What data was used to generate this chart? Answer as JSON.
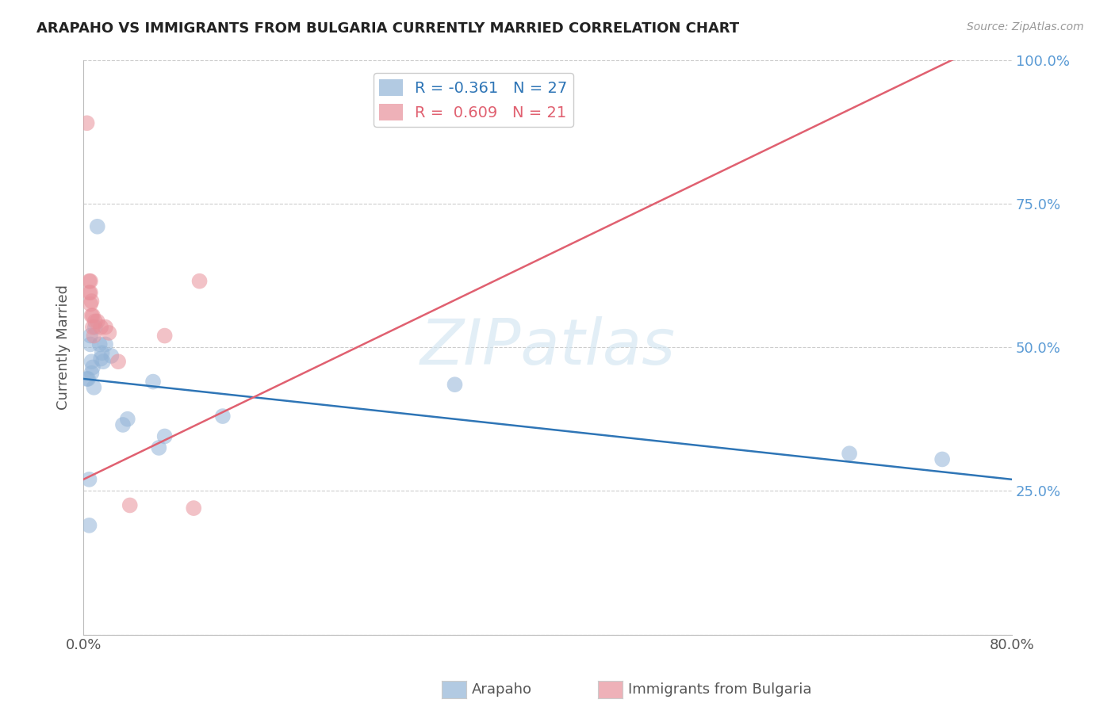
{
  "title": "ARAPAHO VS IMMIGRANTS FROM BULGARIA CURRENTLY MARRIED CORRELATION CHART",
  "source": "Source: ZipAtlas.com",
  "ylabel": "Currently Married",
  "xlim": [
    0.0,
    0.8
  ],
  "ylim": [
    0.0,
    1.0
  ],
  "blue_color": "#92b4d7",
  "pink_color": "#e8909a",
  "blue_line_color": "#2e75b6",
  "pink_line_color": "#e06070",
  "arapaho_points": [
    [
      0.003,
      0.445
    ],
    [
      0.004,
      0.445
    ],
    [
      0.005,
      0.27
    ],
    [
      0.005,
      0.19
    ],
    [
      0.006,
      0.505
    ],
    [
      0.006,
      0.52
    ],
    [
      0.007,
      0.475
    ],
    [
      0.007,
      0.455
    ],
    [
      0.008,
      0.465
    ],
    [
      0.009,
      0.43
    ],
    [
      0.01,
      0.535
    ],
    [
      0.012,
      0.71
    ],
    [
      0.014,
      0.505
    ],
    [
      0.015,
      0.48
    ],
    [
      0.016,
      0.49
    ],
    [
      0.017,
      0.475
    ],
    [
      0.019,
      0.505
    ],
    [
      0.024,
      0.485
    ],
    [
      0.034,
      0.365
    ],
    [
      0.038,
      0.375
    ],
    [
      0.06,
      0.44
    ],
    [
      0.065,
      0.325
    ],
    [
      0.07,
      0.345
    ],
    [
      0.12,
      0.38
    ],
    [
      0.32,
      0.435
    ],
    [
      0.66,
      0.315
    ],
    [
      0.74,
      0.305
    ]
  ],
  "bulgaria_points": [
    [
      0.003,
      0.89
    ],
    [
      0.005,
      0.615
    ],
    [
      0.005,
      0.595
    ],
    [
      0.006,
      0.615
    ],
    [
      0.006,
      0.595
    ],
    [
      0.006,
      0.575
    ],
    [
      0.007,
      0.58
    ],
    [
      0.007,
      0.555
    ],
    [
      0.008,
      0.555
    ],
    [
      0.008,
      0.535
    ],
    [
      0.009,
      0.52
    ],
    [
      0.01,
      0.545
    ],
    [
      0.012,
      0.545
    ],
    [
      0.015,
      0.535
    ],
    [
      0.019,
      0.535
    ],
    [
      0.022,
      0.525
    ],
    [
      0.03,
      0.475
    ],
    [
      0.04,
      0.225
    ],
    [
      0.07,
      0.52
    ],
    [
      0.095,
      0.22
    ],
    [
      0.1,
      0.615
    ]
  ],
  "legend_entry_blue": "R = -0.361   N = 27",
  "legend_entry_pink": "R =  0.609   N = 21",
  "legend_text_blue": "#2e75b6",
  "legend_text_pink": "#e06070",
  "bottom_label_blue": "Arapaho",
  "bottom_label_pink": "Immigrants from Bulgaria",
  "watermark": "ZIPatlas"
}
